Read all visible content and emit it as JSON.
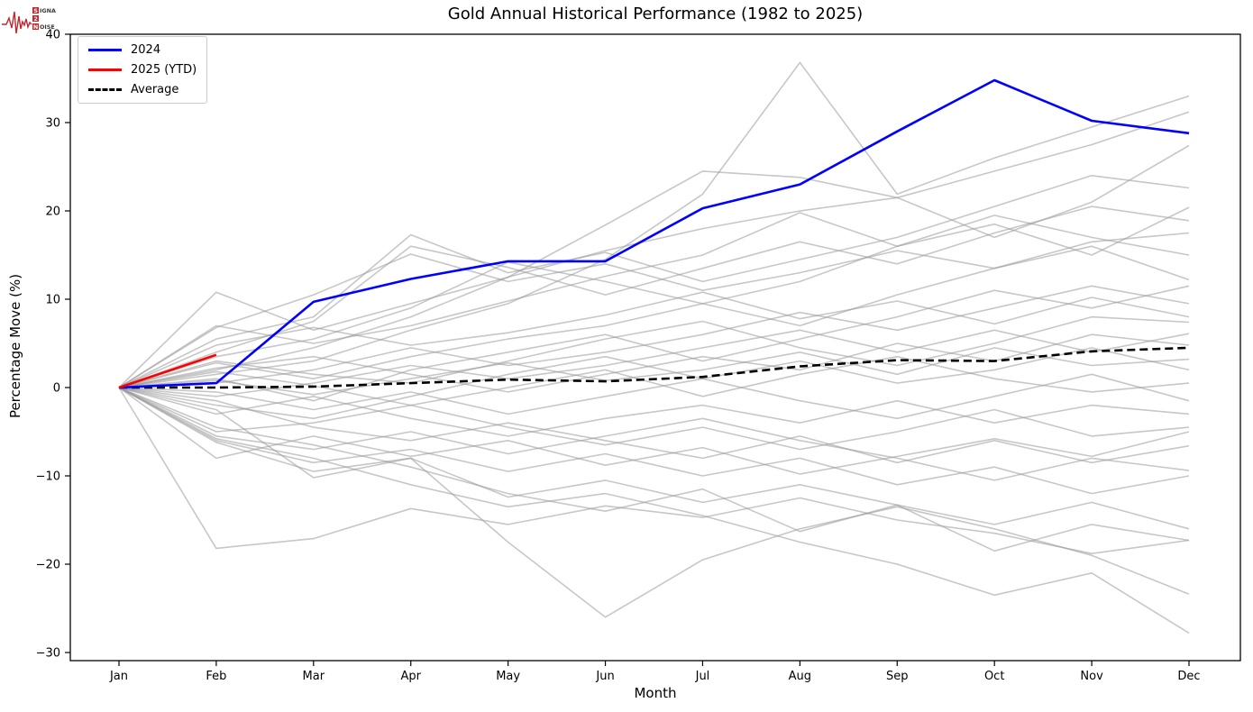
{
  "title": "Gold Annual Historical Performance (1982 to 2025)",
  "logo": {
    "accent_color": "#c1272d",
    "line1": "SIGNAL",
    "line2": "2",
    "line3": "NOISE"
  },
  "chart_data": {
    "type": "line",
    "title": "Gold Annual Historical Performance (1982 to 2025)",
    "xlabel": "Month",
    "ylabel": "Percentage Move (%)",
    "x_categories": [
      "Jan",
      "Feb",
      "Mar",
      "Apr",
      "May",
      "Jun",
      "Jul",
      "Aug",
      "Sep",
      "Oct",
      "Nov",
      "Dec"
    ],
    "y_ticks": [
      40,
      30,
      20,
      10,
      0,
      -10,
      -20,
      -30
    ],
    "ylim": [
      -30.9,
      40.2
    ],
    "grid": false,
    "legend": {
      "position": "upper-left",
      "items": [
        {
          "label": "2024",
          "color": "#0000ff",
          "style": "solid"
        },
        {
          "label": "2025 (YTD)",
          "color": "#ff0000",
          "style": "solid"
        },
        {
          "label": "Average",
          "color": "#000000",
          "style": "dashed"
        }
      ]
    },
    "series": [
      {
        "name": "2024",
        "color": "#0000ff",
        "style": "solid",
        "values": [
          0,
          0.5,
          9.7,
          12.3,
          14.3,
          14.3,
          20.3,
          23.0,
          29.0,
          34.8,
          30.2,
          28.8
        ]
      },
      {
        "name": "2025 (YTD)",
        "color": "#ff0000",
        "style": "solid",
        "values": [
          0,
          3.7
        ]
      },
      {
        "name": "Average",
        "color": "#000000",
        "style": "dashed",
        "values": [
          0,
          0.0,
          0.1,
          0.5,
          0.9,
          0.7,
          1.2,
          2.4,
          3.1,
          3.0,
          4.1,
          4.5
        ]
      }
    ],
    "historical_series_color": "#999999",
    "historical_series_note": "unlabeled grey lines, one per year 1982-2023, values approximate",
    "historical_series": [
      [
        0,
        10.8,
        6.5,
        9.5,
        12.5,
        15.5,
        18.0,
        20.0,
        21.5,
        24.5,
        27.5,
        31.2
      ],
      [
        0,
        1.5,
        3.0,
        6.5,
        9.5,
        14.5,
        21.9,
        36.8,
        21.9,
        26.0,
        29.5,
        33.0
      ],
      [
        0,
        2.0,
        4.5,
        8.0,
        12.5,
        18.4,
        24.5,
        23.8,
        21.5,
        17.0,
        21.0,
        27.4
      ],
      [
        0,
        5.5,
        8.0,
        17.3,
        13.0,
        15.3,
        12.0,
        14.5,
        17.0,
        20.5,
        24.0,
        22.6
      ],
      [
        0,
        4.0,
        7.5,
        16.0,
        13.6,
        10.5,
        13.5,
        16.5,
        14.0,
        17.5,
        20.5,
        18.9
      ],
      [
        0,
        6.8,
        10.5,
        15.1,
        12.0,
        14.0,
        11.0,
        13.0,
        15.5,
        13.5,
        16.5,
        17.5
      ],
      [
        0,
        7.0,
        5.0,
        7.0,
        9.8,
        12.6,
        15.0,
        19.8,
        16.0,
        18.5,
        15.0,
        20.4
      ],
      [
        0,
        2.8,
        1.0,
        3.5,
        5.5,
        7.0,
        9.5,
        7.0,
        10.5,
        13.5,
        16.0,
        12.2
      ],
      [
        0,
        1.0,
        -1.5,
        2.0,
        4.0,
        6.0,
        3.0,
        5.5,
        8.0,
        11.0,
        9.0,
        11.5
      ],
      [
        0,
        0.5,
        2.0,
        4.5,
        2.5,
        4.0,
        6.0,
        8.5,
        6.5,
        9.0,
        11.5,
        9.5
      ],
      [
        0,
        3.0,
        1.5,
        0.5,
        3.0,
        5.5,
        7.5,
        4.5,
        2.5,
        5.0,
        8.0,
        7.4
      ],
      [
        0,
        -1.0,
        0.5,
        2.5,
        1.0,
        2.5,
        4.5,
        6.5,
        4.0,
        6.5,
        4.0,
        6.1
      ],
      [
        0,
        2.2,
        3.5,
        1.5,
        -0.5,
        1.5,
        3.5,
        2.0,
        5.0,
        3.0,
        6.0,
        4.8
      ],
      [
        0,
        0.8,
        -0.8,
        1.0,
        2.8,
        0.8,
        2.0,
        4.0,
        1.5,
        4.5,
        2.5,
        3.2
      ],
      [
        0,
        -2.0,
        -3.5,
        -1.0,
        1.5,
        3.5,
        1.0,
        3.0,
        0.5,
        2.0,
        4.5,
        2.0
      ],
      [
        0,
        1.8,
        0.2,
        -2.0,
        0.0,
        2.0,
        -1.0,
        1.5,
        3.5,
        1.0,
        -0.5,
        0.5
      ],
      [
        0,
        -0.5,
        -2.5,
        -0.5,
        -3.0,
        -1.0,
        1.0,
        -1.5,
        -3.5,
        -1.0,
        1.5,
        -1.5
      ],
      [
        0,
        -3.0,
        -1.0,
        -3.5,
        -5.5,
        -3.5,
        -2.0,
        -4.0,
        -1.5,
        -4.0,
        -2.0,
        -3.0
      ],
      [
        0,
        -5.0,
        -4.0,
        -2.0,
        -4.5,
        -6.5,
        -4.5,
        -7.0,
        -5.0,
        -2.5,
        -5.5,
        -4.5
      ],
      [
        0,
        -1.5,
        -4.5,
        -6.0,
        -4.0,
        -6.0,
        -8.0,
        -5.5,
        -8.5,
        -6.0,
        -8.5,
        -6.6
      ],
      [
        0,
        -5.5,
        -7.0,
        -5.0,
        -7.5,
        -5.5,
        -3.5,
        -6.0,
        -8.0,
        -10.5,
        -8.0,
        -9.4
      ],
      [
        0,
        -6.0,
        -8.5,
        -7.0,
        -9.5,
        -7.5,
        -10.0,
        -8.0,
        -11.0,
        -9.0,
        -12.0,
        -10.0
      ],
      [
        0,
        -2.5,
        -10.2,
        -8.0,
        -12.4,
        -10.5,
        -13.0,
        -11.0,
        -13.3,
        -15.5,
        -13.0,
        -16.0
      ],
      [
        0,
        -4.5,
        -6.5,
        -9.0,
        -12.0,
        -14.0,
        -11.5,
        -16.3,
        -13.3,
        -18.5,
        -15.5,
        -17.3
      ],
      [
        0,
        -18.2,
        -17.1,
        -13.7,
        -15.5,
        -13.4,
        -14.7,
        -12.5,
        -15.0,
        -16.5,
        -18.8,
        -17.3
      ],
      [
        0,
        -6.2,
        -9.5,
        -8.0,
        -17.5,
        -26.0,
        -19.5,
        -16.0,
        -13.5,
        -16.0,
        -19.0,
        -23.4
      ],
      [
        0,
        -5.8,
        -8.0,
        -11.0,
        -13.5,
        -12.0,
        -14.5,
        -17.5,
        -20.0,
        -23.5,
        -21.0,
        -27.8
      ],
      [
        0,
        4.8,
        6.8,
        4.8,
        6.2,
        8.2,
        10.8,
        7.8,
        9.8,
        7.2,
        10.2,
        8.0
      ],
      [
        0,
        -8.0,
        -5.5,
        -7.8,
        -6.0,
        -8.8,
        -6.8,
        -9.8,
        -7.8,
        -5.8,
        -7.8,
        -5.0
      ],
      [
        0,
        3.5,
        5.5,
        9.0,
        14.2,
        12.0,
        9.5,
        12.0,
        16.0,
        19.5,
        17.0,
        15.0
      ]
    ]
  }
}
